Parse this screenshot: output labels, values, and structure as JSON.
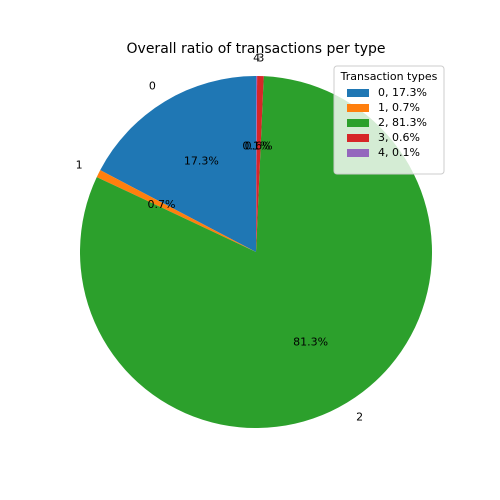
{
  "chart_data": {
    "type": "pie",
    "title": "Overall ratio of transactions per type",
    "categories": [
      "0",
      "1",
      "2",
      "3",
      "4"
    ],
    "values": [
      17.3,
      0.7,
      81.3,
      0.6,
      0.1
    ],
    "pct_labels": [
      "17.3%",
      "0.7%",
      "81.3%",
      "0.6%",
      "0.1%"
    ],
    "colors": [
      "#1f77b4",
      "#ff7f0e",
      "#2ca02c",
      "#d62728",
      "#9467bd"
    ],
    "start_angle_deg": 90,
    "direction": "counterclockwise",
    "legend": {
      "title": "Transaction types",
      "placement": "top-right",
      "entries": [
        "0, 17.3%",
        "1, 0.7%",
        "2, 81.3%",
        "3, 0.6%",
        "4, 0.1%"
      ]
    }
  }
}
